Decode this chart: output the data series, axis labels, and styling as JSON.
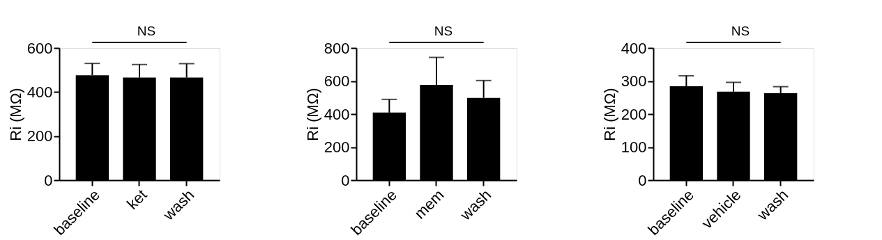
{
  "chart_data": [
    {
      "type": "bar",
      "ylabel": "Ri (MΩ)",
      "categories": [
        "baseline",
        "ket",
        "wash"
      ],
      "values": [
        476,
        466,
        466
      ],
      "errors": [
        [
          476,
          530
        ],
        [
          466,
          525
        ],
        [
          466,
          529
        ]
      ],
      "color": "#000000",
      "ylim": [
        0,
        600
      ],
      "yticks": [
        0,
        200,
        400,
        600
      ],
      "grid": false,
      "annotations": [
        "NS"
      ]
    },
    {
      "type": "bar",
      "ylabel": "Ri (MΩ)",
      "categories": [
        "baseline",
        "mem",
        "wash"
      ],
      "values": [
        409,
        577,
        498
      ],
      "errors": [
        [
          409,
          489
        ],
        [
          577,
          743
        ],
        [
          498,
          603
        ]
      ],
      "color": "#000000",
      "ylim": [
        0,
        800
      ],
      "yticks": [
        0,
        200,
        400,
        600,
        800
      ],
      "grid": false,
      "annotations": [
        "NS"
      ]
    },
    {
      "type": "bar",
      "ylabel": "Ri (MΩ)",
      "categories": [
        "baseline",
        "vehicle",
        "wash"
      ],
      "values": [
        284,
        268,
        263
      ],
      "errors": [
        [
          284,
          316
        ],
        [
          268,
          296
        ],
        [
          263,
          283
        ]
      ],
      "color": "#000000",
      "ylim": [
        0,
        400
      ],
      "yticks": [
        0,
        100,
        200,
        300,
        400
      ],
      "grid": false,
      "annotations": [
        "NS"
      ]
    }
  ]
}
